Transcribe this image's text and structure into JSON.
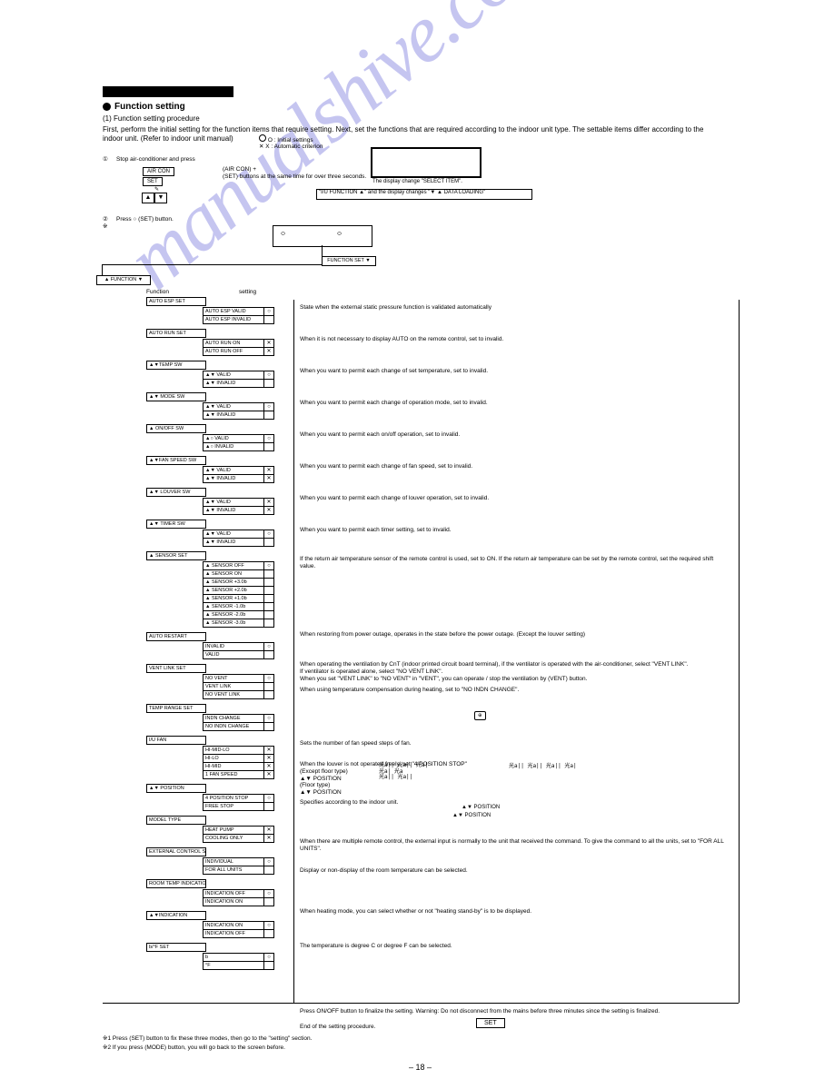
{
  "page_number": "– 18 –",
  "watermark": "manualshive.com",
  "black_bar_width": 144,
  "header": {
    "title": "Function setting",
    "sub": "(1) Function setting procedure",
    "intro": "First, perform the initial setting for the function items that require setting. Next, set the functions that are required according to the indoor unit type. The settable items differ according to the indoor unit. (Refer to indoor unit manual)",
    "note_o": "O : Initial settings",
    "note_x": "X : Automatic criterion"
  },
  "step1": {
    "text": "Stop air-conditioner and press",
    "text2": "(SET) buttons at the same time for over three seconds.",
    "buttons_line": "■■■ + ○○○",
    "triangles": "▲ ▼"
  },
  "display_note": "The display change \"SELECT ITEM\".",
  "step2": "Press ○ (SET) button.",
  "step_marks": {
    "o": "○",
    "x": "※"
  },
  "iu_select": "I/U SELECT ... FUNCTION ▼",
  "function_set": "FUNCTION SET ▼",
  "function_root": "▲ FUNCTION ▼",
  "col_function": "Function",
  "col_setting": "setting",
  "items": [
    {
      "name": "AUTO ESP SET",
      "settings": [
        {
          "s": "AUTO ESP VALID",
          "m": "○"
        },
        {
          "s": "AUTO ESP INVALID",
          "m": ""
        }
      ],
      "desc": "State when the external static pressure function is validated automatically"
    },
    {
      "name": "AUTO RUN SET",
      "settings": [
        {
          "s": "AUTO RUN ON",
          "m": "✕"
        },
        {
          "s": "AUTO RUN OFF",
          "m": "✕"
        }
      ],
      "desc": "When it is not necessary to display AUTO on the remote control, set to invalid."
    },
    {
      "name": "▲▼TEMP SW",
      "settings": [
        {
          "s": "▲▼ VALID",
          "m": "○"
        },
        {
          "s": "▲▼ INVALID",
          "m": ""
        }
      ],
      "desc": "When you want to permit each change of set temperature, set to invalid."
    },
    {
      "name": "▲▼ MODE SW",
      "settings": [
        {
          "s": "▲▼ VALID",
          "m": "○"
        },
        {
          "s": "▲▼ INVALID",
          "m": ""
        }
      ],
      "desc": "When you want to permit each change of operation mode, set to invalid."
    },
    {
      "name": "▲ ON/OFF SW",
      "settings": [
        {
          "s": "▲○ VALID",
          "m": "○"
        },
        {
          "s": "▲○ INVALID",
          "m": ""
        }
      ],
      "desc": "When you want to permit each on/off operation, set to invalid."
    },
    {
      "name": "▲▼FAN SPEED SW",
      "settings": [
        {
          "s": "▲▼ VALID",
          "m": "✕"
        },
        {
          "s": "▲▼ INVALID",
          "m": "✕"
        }
      ],
      "desc": "When you want to permit each change of fan speed, set to invalid."
    },
    {
      "name": "▲▼ LOUVER SW",
      "settings": [
        {
          "s": "▲▼ VALID",
          "m": "✕"
        },
        {
          "s": "▲▼ INVALID",
          "m": "✕"
        }
      ],
      "desc": "When you want to permit each change of louver operation, set to invalid."
    },
    {
      "name": "▲▼ TIMER SW",
      "settings": [
        {
          "s": "▲▼ VALID",
          "m": "○"
        },
        {
          "s": "▲▼ INVALID",
          "m": ""
        }
      ],
      "desc": "When you want to permit each timer setting, set to invalid."
    },
    {
      "name": "▲ SENSOR SET",
      "settings": [
        {
          "s": "▲ SENSOR OFF",
          "m": "○"
        },
        {
          "s": "▲ SENSOR ON",
          "m": ""
        },
        {
          "s": "▲ SENSOR +3.0b",
          "m": ""
        },
        {
          "s": "▲ SENSOR +2.0b",
          "m": ""
        },
        {
          "s": "▲ SENSOR +1.0b",
          "m": ""
        },
        {
          "s": "▲ SENSOR -1.0b",
          "m": ""
        },
        {
          "s": "▲ SENSOR -2.0b",
          "m": ""
        },
        {
          "s": "▲ SENSOR -3.0b",
          "m": ""
        }
      ],
      "desc": "If the return air temperature sensor of the remote control is used, set to ON. If the return air temperature can be set by the remote control, set the required shift value."
    },
    {
      "name": "AUTO RESTART",
      "settings": [
        {
          "s": "INVALID",
          "m": "○"
        },
        {
          "s": "VALID",
          "m": ""
        }
      ],
      "desc": "When restoring from power outage, operates in the state before the power outage. (Except the louver setting)"
    },
    {
      "name": "VENT LINK SET",
      "settings": [
        {
          "s": "NO VENT",
          "m": "○"
        },
        {
          "s": "VENT LINK",
          "m": ""
        },
        {
          "s": "NO VENT LINK",
          "m": ""
        }
      ],
      "desc": [
        "When operating the ventilation by CnT (indoor printed circuit board terminal), if the ventilator is operated with the air-conditioner, select \"VENT LINK\".",
        "If ventilator is operated alone, select \"NO VENT LINK\".",
        "When you set \"VENT LINK\" to \"NO VENT\" in \"VENT\", you can operate / stop the ventilation by (VENT) button."
      ]
    },
    {
      "name": "TEMP RANGE SET",
      "settings": [
        {
          "s": "INDN CHANGE",
          "m": "○"
        },
        {
          "s": "NO INDN CHANGE",
          "m": ""
        }
      ],
      "desc": "When using temperature compensation during heating, set to \"NO INDN CHANGE\"."
    },
    {
      "name": "I/U FAN",
      "settings": [
        {
          "s": "HI-MID-LO",
          "m": "✕"
        },
        {
          "s": "HI-LO",
          "m": "✕"
        },
        {
          "s": "HI-MID",
          "m": "✕"
        },
        {
          "s": "1 FAN SPEED",
          "m": "✕"
        }
      ],
      "desc": "Sets the number of fan speed steps of fan."
    },
    {
      "name": "▲▼ POSITION",
      "settings": [
        {
          "s": "4 POSITION STOP",
          "m": "○"
        },
        {
          "s": "FREE STOP",
          "m": ""
        }
      ],
      "desc": [
        "When the louver is not operated freely, set \"4 POSITION STOP\"",
        "(Except floor type)",
        "▲▼ POSITION",
        "(Floor type)",
        "▲▼ POSITION"
      ]
    },
    {
      "name": "MODEL TYPE",
      "settings": [
        {
          "s": "HEAT PUMP",
          "m": "✕"
        },
        {
          "s": "COOLING ONLY",
          "m": "✕"
        }
      ],
      "desc": "Specifies according to the indoor unit."
    },
    {
      "name": "EXTERNAL CONTROL SET",
      "settings": [
        {
          "s": "INDIVIDUAL",
          "m": "○"
        },
        {
          "s": "FOR ALL UNITS",
          "m": ""
        }
      ],
      "desc": "When there are multiple remote control, the external input is normally to the unit that received the command. To give the command to all the units, set to \"FOR ALL UNITS\"."
    },
    {
      "name": "ROOM TEMP INDICATION SET",
      "settings": [
        {
          "s": "INDICATION OFF",
          "m": "○"
        },
        {
          "s": "INDICATION ON",
          "m": ""
        }
      ],
      "desc": "Display or non-display of the room temperature can be selected."
    },
    {
      "name": "▲▼INDICATION",
      "settings": [
        {
          "s": "INDICATION ON",
          "m": "○"
        },
        {
          "s": "INDICATION OFF",
          "m": ""
        }
      ],
      "desc": "When heating mode, you can select whether or not \"heating stand-by\" is to be displayed."
    },
    {
      "name": "b/°F SET",
      "settings": [
        {
          "s": "b",
          "m": "○"
        },
        {
          "s": "°F",
          "m": ""
        }
      ],
      "desc": "The temperature is degree C or degree F can be selected."
    }
  ],
  "fan_symbols": {
    "row1": "光a|| 光a|| 光a|",
    "row2": "光a| 光a",
    "row3": "光a|| 光a||",
    "symbols": "光a|| 光a|| 光a|| 光a|"
  },
  "footer_note": {
    "line1": "Press ON/OFF button to finalize the setting. Warning: Do not disconnect from the mains before three minutes since the setting is finalized.",
    "line2": "End of the setting procedure.",
    "set_label": "SET"
  },
  "asterisk_notes": [
    "※1 Press (SET) button to fix these three modes, then go to the \"setting\" section.",
    "※2 If you press (MODE) button, you will go back to the screen before."
  ]
}
